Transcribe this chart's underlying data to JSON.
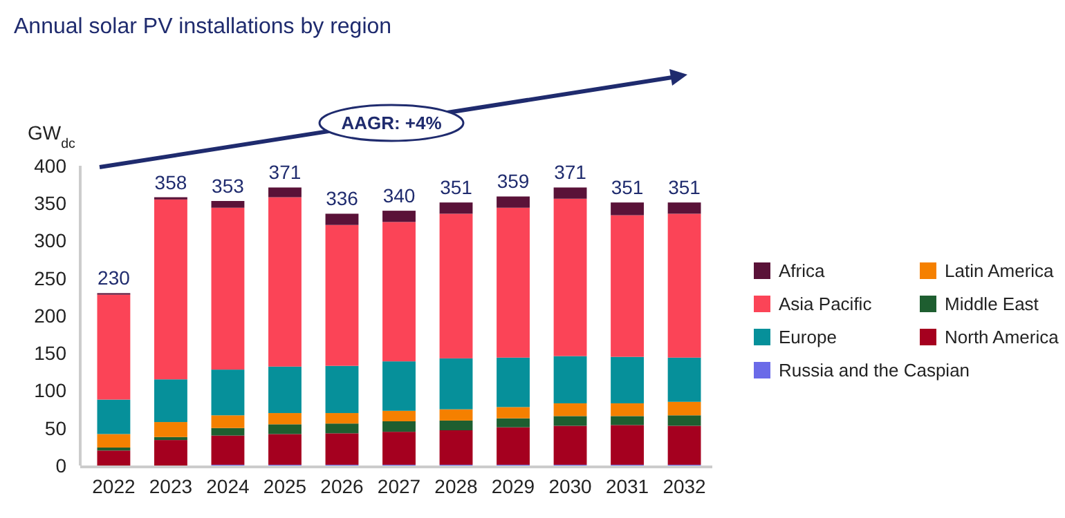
{
  "chart_data": {
    "type": "bar",
    "title": "Annual solar PV installations by region",
    "ylabel": "GW$_{dc}$",
    "annotations": [
      "AAGR: +4%"
    ],
    "categories": [
      "2022",
      "2023",
      "2024",
      "2025",
      "2026",
      "2027",
      "2028",
      "2029",
      "2030",
      "2031",
      "2032"
    ],
    "stacked": true,
    "legend": "right",
    "grid": false,
    "ylim": [
      0,
      400
    ],
    "yticks": [
      0,
      50,
      100,
      150,
      200,
      250,
      300,
      350,
      400
    ],
    "totals": [
      "230",
      "358",
      "353",
      "371",
      "336",
      "340",
      "351",
      "359",
      "371",
      "351",
      "351"
    ],
    "series": [
      {
        "name": "Russia and the Caspian",
        "color": "#6a6ae8",
        "values": [
          0,
          0,
          1,
          1,
          1,
          1,
          1,
          1,
          1,
          1,
          1
        ]
      },
      {
        "name": "North America",
        "color": "#a5001f",
        "values": [
          20,
          34,
          39,
          41,
          42,
          44,
          46,
          50,
          52,
          53,
          52
        ]
      },
      {
        "name": "Middle East",
        "color": "#1e5e30",
        "values": [
          4,
          4,
          10,
          13,
          13,
          14,
          13,
          12,
          13,
          12,
          14
        ]
      },
      {
        "name": "Latin America",
        "color": "#f58000",
        "values": [
          18,
          20,
          17,
          15,
          14,
          14,
          15,
          15,
          17,
          17,
          18
        ]
      },
      {
        "name": "Europe",
        "color": "#06909a",
        "values": [
          46,
          57,
          61,
          62,
          63,
          66,
          68,
          66,
          63,
          62,
          59
        ]
      },
      {
        "name": "Asia Pacific",
        "color": "#fb4457",
        "values": [
          140,
          240,
          216,
          226,
          188,
          186,
          193,
          200,
          210,
          189,
          192
        ]
      },
      {
        "name": "Africa",
        "color": "#5a1238",
        "values": [
          2,
          3,
          9,
          13,
          15,
          15,
          15,
          15,
          15,
          17,
          15
        ]
      }
    ]
  }
}
